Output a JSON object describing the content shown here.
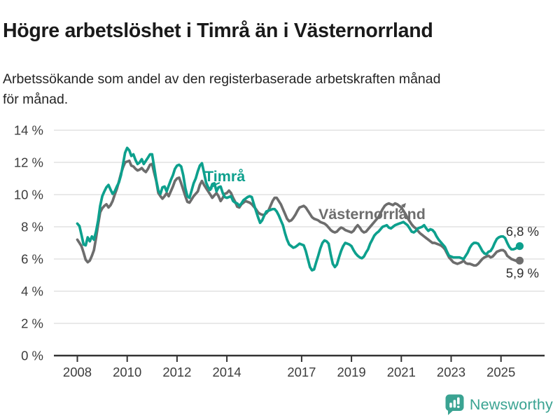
{
  "header": {
    "title": "Högre arbetslöshet i Timrå än i Västernorrland",
    "subtitle_lines": [
      "Arbetssökande som andel av den registerbaserade arbetskraften månad",
      "för månad."
    ]
  },
  "branding": {
    "name": "Newsworthy",
    "color": "#3aa392"
  },
  "chart_data": {
    "type": "line",
    "title": "Högre arbetslöshet i Timrå än i Västernorrland",
    "subtitle": "Arbetssökande som andel av den registerbaserade arbetskraften månad för månad.",
    "unit": "%",
    "x_frequency": "monthly",
    "x_start": "2008-01",
    "x_end": "2025-10",
    "x_ticks": [
      2008,
      2010,
      2012,
      2014,
      2017,
      2019,
      2021,
      2023,
      2025
    ],
    "y_ticks": [
      0,
      2,
      4,
      6,
      8,
      10,
      12,
      14
    ],
    "y_tick_suffix": " %",
    "ylim": [
      0,
      14
    ],
    "grid": "horizontal",
    "legend": "inline-labels",
    "colors": {
      "gridline": "#dcdcdc",
      "axis": "#333333",
      "tick_text": "#3d3d3d",
      "end_label_text": "#2e2e2e"
    },
    "series": [
      {
        "name": "Timrå",
        "color": "#0da08d",
        "end_label": "6,8 %",
        "end_value": 6.8,
        "values": [
          8.2,
          8.05,
          7.5,
          6.9,
          6.85,
          7.35,
          7.1,
          7.4,
          7.2,
          7.7,
          8.4,
          9.3,
          9.9,
          10.2,
          10.45,
          10.6,
          10.3,
          10.05,
          10.2,
          10.5,
          10.75,
          11.2,
          11.9,
          12.6,
          12.9,
          12.75,
          12.4,
          12.5,
          12.15,
          11.9,
          12.0,
          12.2,
          11.9,
          12.1,
          12.3,
          12.5,
          12.5,
          11.7,
          10.9,
          10.25,
          10.05,
          10.45,
          10.5,
          10.2,
          10.55,
          10.9,
          11.2,
          11.6,
          11.8,
          11.85,
          11.75,
          11.2,
          10.4,
          9.9,
          9.8,
          10.25,
          10.7,
          11.0,
          11.45,
          11.8,
          11.95,
          11.35,
          10.75,
          10.45,
          10.3,
          10.65,
          10.7,
          10.2,
          10.45,
          10.5,
          10.1,
          9.85,
          9.8,
          9.85,
          9.9,
          9.6,
          9.5,
          9.45,
          9.3,
          9.45,
          9.65,
          9.75,
          9.85,
          9.9,
          9.85,
          9.4,
          9.0,
          8.6,
          8.25,
          8.4,
          8.7,
          8.95,
          9.0,
          9.05,
          9.1,
          9.1,
          8.95,
          8.7,
          8.4,
          8.1,
          7.6,
          7.2,
          6.9,
          6.8,
          6.7,
          6.75,
          6.85,
          6.95,
          6.9,
          6.85,
          6.5,
          6.0,
          5.5,
          5.3,
          5.35,
          5.8,
          6.2,
          6.65,
          7.0,
          7.15,
          7.1,
          6.95,
          6.3,
          5.7,
          5.5,
          5.65,
          6.1,
          6.5,
          6.8,
          7.0,
          6.95,
          6.9,
          6.8,
          6.55,
          6.35,
          6.2,
          6.1,
          6.05,
          6.15,
          6.4,
          6.6,
          6.95,
          7.2,
          7.45,
          7.6,
          7.7,
          7.85,
          8.0,
          8.05,
          8.1,
          7.95,
          7.9,
          8.0,
          8.1,
          8.15,
          8.2,
          8.25,
          8.3,
          8.2,
          8.1,
          7.9,
          7.7,
          7.65,
          7.75,
          7.9,
          7.95,
          8.0,
          8.1,
          7.9,
          7.75,
          7.85,
          7.8,
          7.65,
          7.4,
          7.2,
          7.05,
          6.9,
          6.75,
          6.45,
          6.2,
          6.15,
          6.1,
          6.1,
          6.1,
          6.1,
          6.05,
          6.0,
          6.2,
          6.4,
          6.7,
          6.9,
          7.0,
          7.0,
          6.95,
          6.75,
          6.5,
          6.35,
          6.3,
          6.45,
          6.5,
          6.7,
          7.0,
          7.25,
          7.35,
          7.4,
          7.4,
          7.3,
          7.0,
          6.75,
          6.6,
          6.6,
          6.65,
          6.75,
          6.8
        ]
      },
      {
        "name": "Västernorrland",
        "color": "#6d6d6d",
        "end_label": "5,9 %",
        "end_value": 5.9,
        "values": [
          7.2,
          7.0,
          6.8,
          6.4,
          5.95,
          5.8,
          5.9,
          6.2,
          6.55,
          7.3,
          8.15,
          8.9,
          9.15,
          9.3,
          9.4,
          9.2,
          9.35,
          9.6,
          10.0,
          10.35,
          10.8,
          11.3,
          11.7,
          12.0,
          12.05,
          12.1,
          11.8,
          11.75,
          11.6,
          11.5,
          11.55,
          11.65,
          11.5,
          11.4,
          11.6,
          11.85,
          11.9,
          11.35,
          10.85,
          10.1,
          9.9,
          9.75,
          9.9,
          10.1,
          9.9,
          10.2,
          10.5,
          10.85,
          11.0,
          11.05,
          10.7,
          10.3,
          9.9,
          9.55,
          9.5,
          9.7,
          9.9,
          10.05,
          10.2,
          10.6,
          10.85,
          10.6,
          10.4,
          10.2,
          10.0,
          9.8,
          9.95,
          10.1,
          9.9,
          9.6,
          9.8,
          10.05,
          10.1,
          10.25,
          10.1,
          9.8,
          9.55,
          9.25,
          9.2,
          9.4,
          9.5,
          9.6,
          9.55,
          9.5,
          9.4,
          9.25,
          9.1,
          8.9,
          8.8,
          8.75,
          8.75,
          8.85,
          9.0,
          9.3,
          9.6,
          9.8,
          9.8,
          9.6,
          9.4,
          9.1,
          8.8,
          8.5,
          8.35,
          8.4,
          8.55,
          8.75,
          9.0,
          9.2,
          9.25,
          9.3,
          9.2,
          9.0,
          8.8,
          8.6,
          8.5,
          8.45,
          8.4,
          8.3,
          8.25,
          8.2,
          8.1,
          7.95,
          7.8,
          7.7,
          7.65,
          7.7,
          7.85,
          7.95,
          7.9,
          7.8,
          7.75,
          7.7,
          7.65,
          7.75,
          7.95,
          8.1,
          7.95,
          7.75,
          7.65,
          7.7,
          7.85,
          8.0,
          8.15,
          8.3,
          8.45,
          8.6,
          8.85,
          9.1,
          9.3,
          9.4,
          9.45,
          9.4,
          9.35,
          9.45,
          9.4,
          9.3,
          9.2,
          9.0,
          8.8,
          8.55,
          8.35,
          8.15,
          8.0,
          7.9,
          7.75,
          7.6,
          7.5,
          7.4,
          7.3,
          7.2,
          7.1,
          7.0,
          7.0,
          6.95,
          6.9,
          6.85,
          6.75,
          6.6,
          6.35,
          6.1,
          5.95,
          5.8,
          5.75,
          5.7,
          5.75,
          5.8,
          5.9,
          5.75,
          5.7,
          5.7,
          5.65,
          5.6,
          5.6,
          5.7,
          5.85,
          6.0,
          6.1,
          6.15,
          6.2,
          6.1,
          6.15,
          6.3,
          6.45,
          6.5,
          6.55,
          6.55,
          6.45,
          6.2,
          6.1,
          6.0,
          5.95,
          5.9,
          5.85,
          5.9
        ]
      }
    ]
  }
}
